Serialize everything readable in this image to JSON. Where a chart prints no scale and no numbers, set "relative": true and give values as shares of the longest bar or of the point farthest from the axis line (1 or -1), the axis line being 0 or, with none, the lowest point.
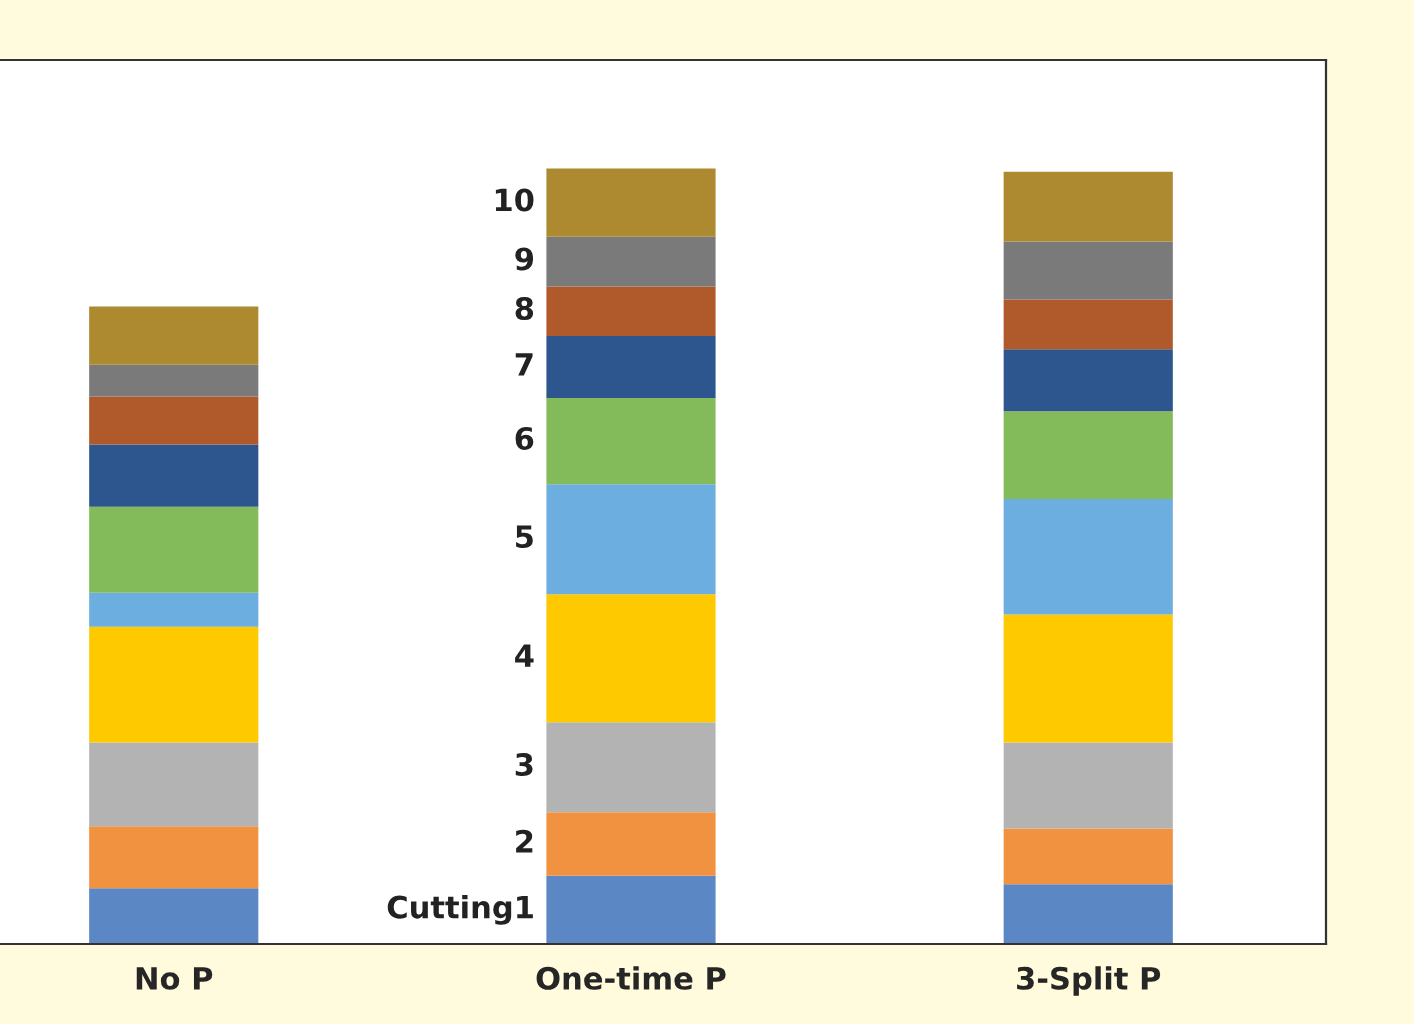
{
  "chart_data": {
    "type": "bar",
    "stacked": true,
    "relative": true,
    "categories": [
      "No P",
      "One-time P",
      "3-Split P"
    ],
    "series": [
      {
        "name": "Cutting1",
        "color": "#5b87c5",
        "values": [
          0.072,
          0.088,
          0.077
        ]
      },
      {
        "name": "2",
        "color": "#f0923f",
        "values": [
          0.08,
          0.082,
          0.072
        ]
      },
      {
        "name": "3",
        "color": "#b3b3b3",
        "values": [
          0.108,
          0.116,
          0.111
        ]
      },
      {
        "name": "4",
        "color": "#ffc900",
        "values": [
          0.149,
          0.165,
          0.165
        ]
      },
      {
        "name": "5",
        "color": "#6daee0",
        "values": [
          0.044,
          0.142,
          0.149
        ]
      },
      {
        "name": "6",
        "color": "#83bb5a",
        "values": [
          0.111,
          0.111,
          0.113
        ]
      },
      {
        "name": "7",
        "color": "#2e568e",
        "values": [
          0.08,
          0.08,
          0.08
        ]
      },
      {
        "name": "8",
        "color": "#b0592a",
        "values": [
          0.062,
          0.064,
          0.064
        ]
      },
      {
        "name": "9",
        "color": "#7a7a7a",
        "values": [
          0.041,
          0.064,
          0.075
        ]
      },
      {
        "name": "10",
        "color": "#ad8a2f",
        "values": [
          0.075,
          0.088,
          0.09
        ]
      }
    ]
  }
}
